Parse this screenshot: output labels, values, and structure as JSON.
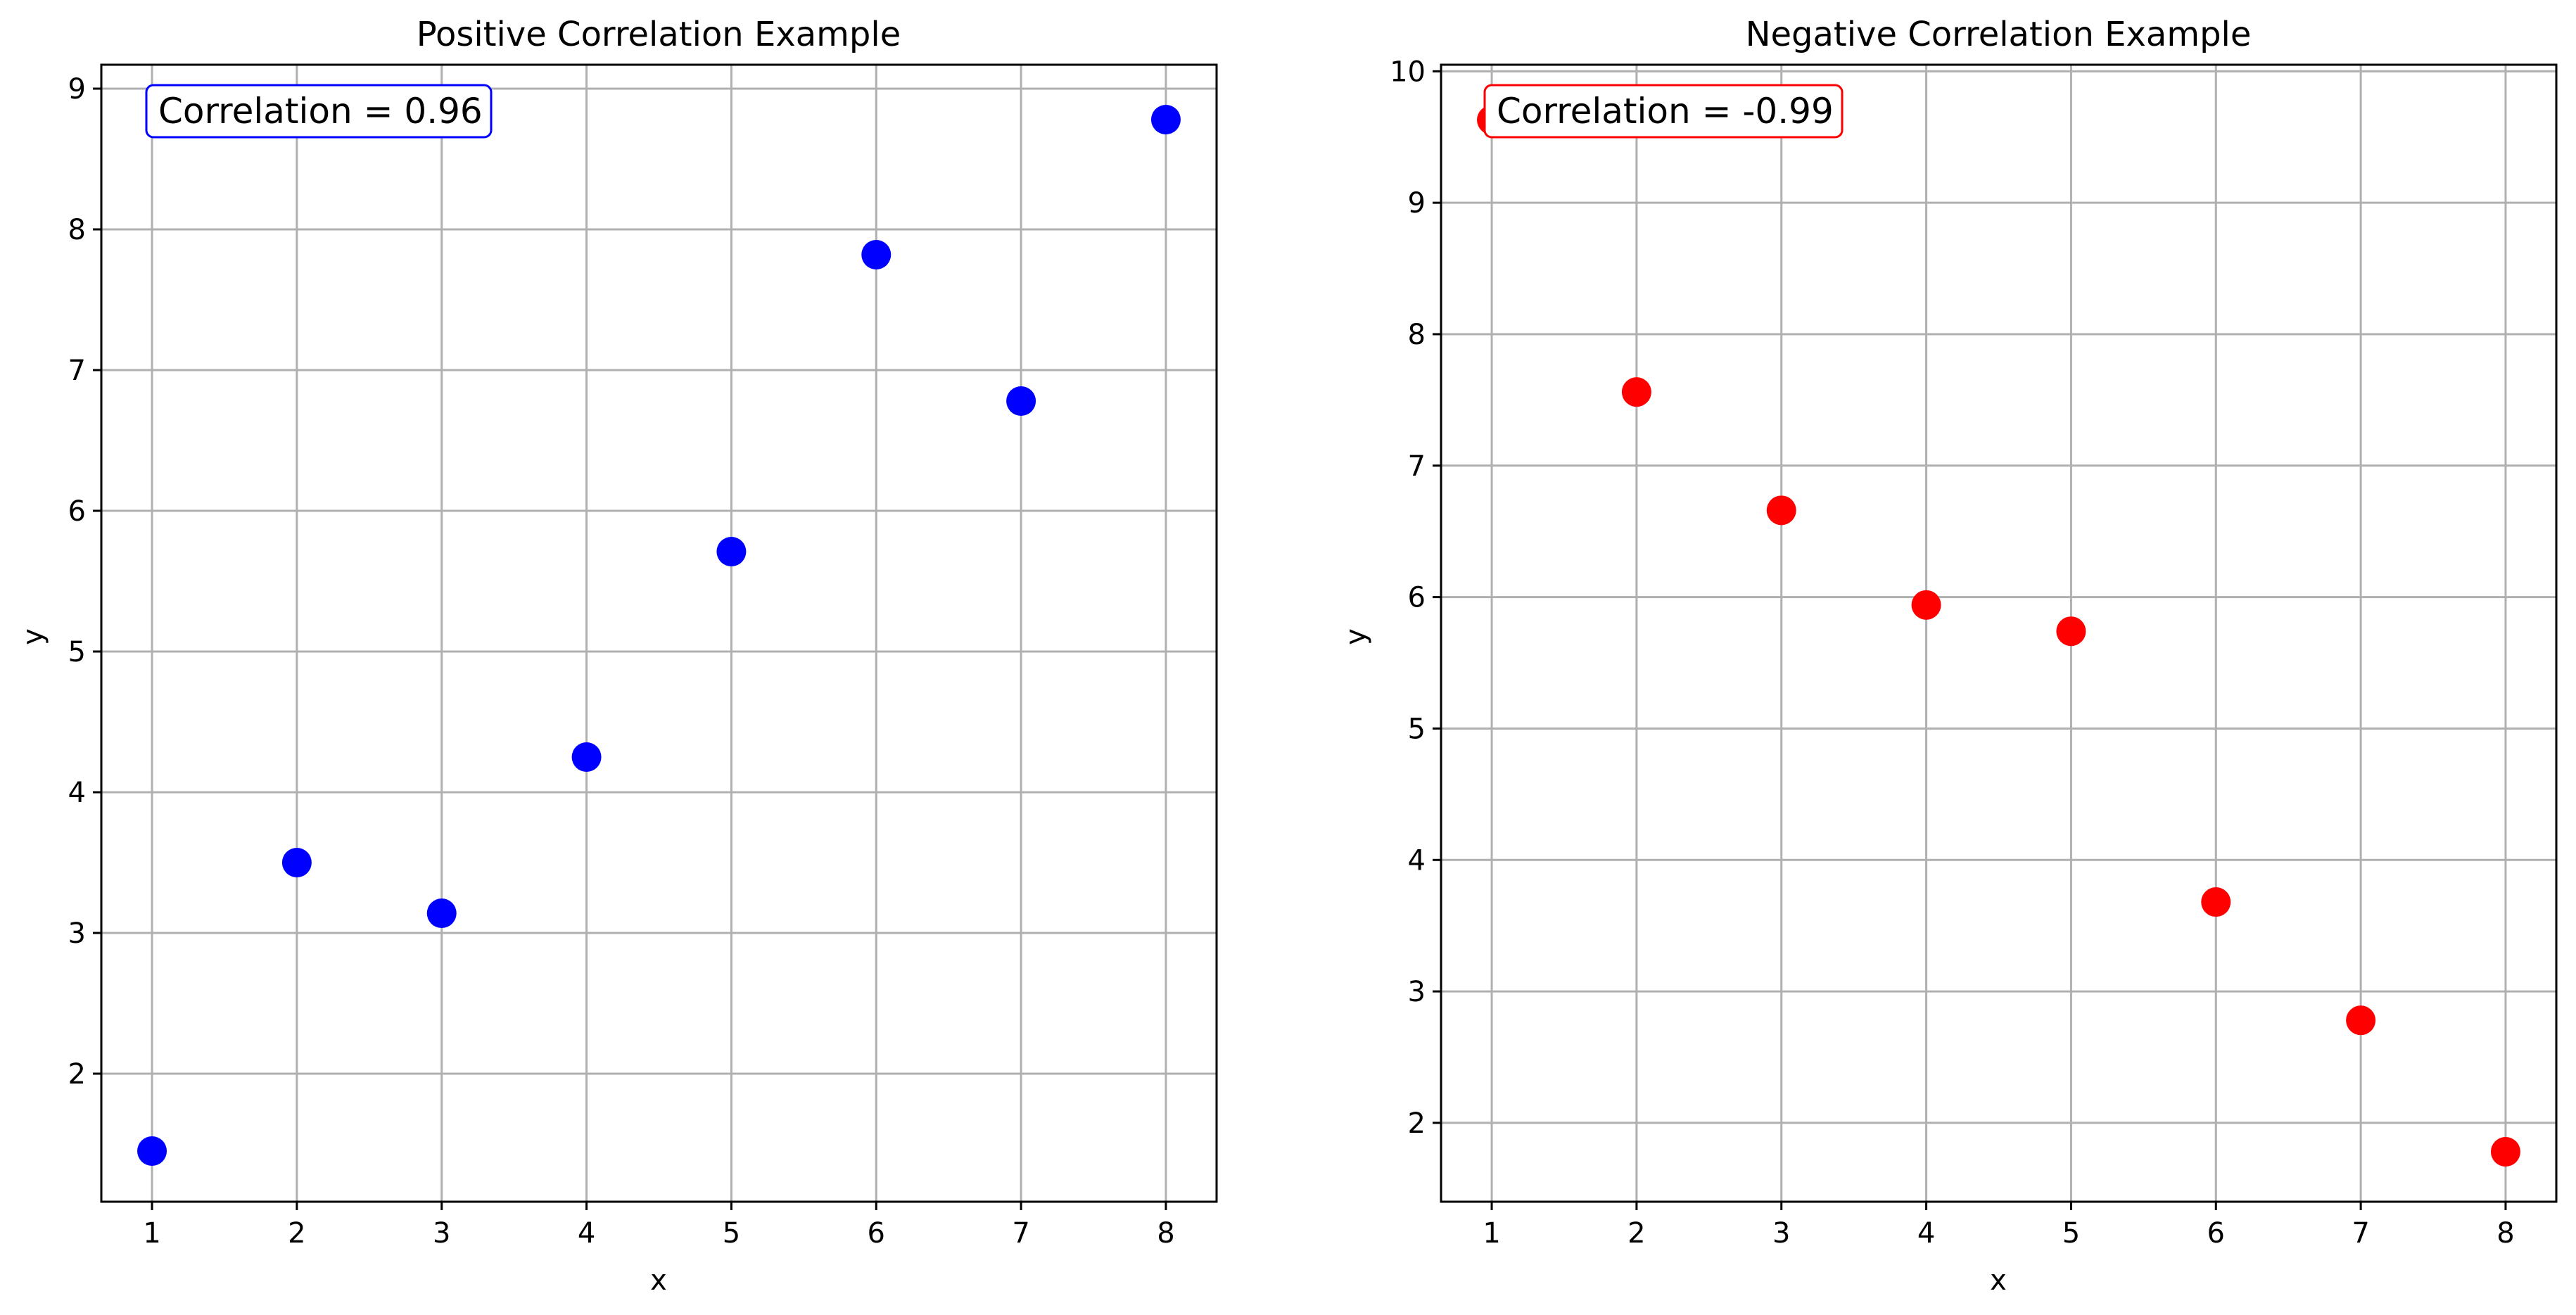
{
  "chart_data": [
    {
      "type": "scatter",
      "title": "Positive Correlation Example",
      "xlabel": "x",
      "ylabel": "y",
      "xlim": [
        0.65,
        8.35
      ],
      "ylim": [
        1.09,
        9.17
      ],
      "xticks": [
        1,
        2,
        3,
        4,
        5,
        6,
        7,
        8
      ],
      "yticks": [
        2,
        3,
        4,
        5,
        6,
        7,
        8,
        9
      ],
      "grid": true,
      "color": "#0000ff",
      "annotation": {
        "text": "Correlation = 0.96",
        "border_color": "#0000ff",
        "position": "top-left"
      },
      "series": [
        {
          "x": [
            1,
            2,
            3,
            4,
            5,
            6,
            7,
            8
          ],
          "y": [
            1.45,
            3.5,
            3.14,
            4.25,
            5.71,
            7.82,
            6.78,
            8.78
          ]
        }
      ]
    },
    {
      "type": "scatter",
      "title": "Negative Correlation Example",
      "xlabel": "x",
      "ylabel": "y",
      "xlim": [
        0.65,
        8.35
      ],
      "ylim": [
        1.4,
        10.05
      ],
      "xticks": [
        1,
        2,
        3,
        4,
        5,
        6,
        7,
        8
      ],
      "yticks": [
        2,
        3,
        4,
        5,
        6,
        7,
        8,
        9,
        10
      ],
      "grid": true,
      "color": "#ff0000",
      "annotation": {
        "text": "Correlation = -0.99",
        "border_color": "#ff0000",
        "position": "top-left"
      },
      "series": [
        {
          "x": [
            1,
            2,
            3,
            4,
            5,
            6,
            7,
            8
          ],
          "y": [
            9.63,
            7.56,
            6.66,
            5.94,
            5.74,
            3.68,
            2.78,
            1.78
          ]
        }
      ]
    }
  ]
}
